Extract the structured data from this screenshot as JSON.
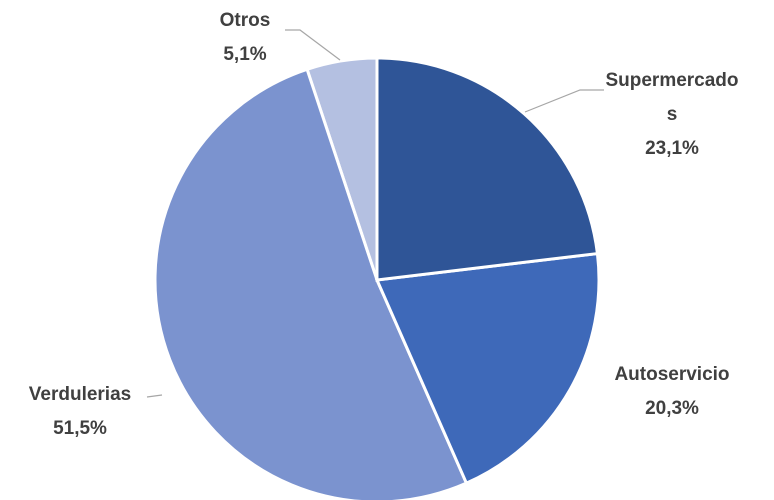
{
  "chart_data": {
    "type": "pie",
    "categories": [
      "Supermercados",
      "Autoservicio",
      "Verdulerias",
      "Otros"
    ],
    "values": [
      23.1,
      20.3,
      51.5,
      5.1
    ],
    "value_labels": [
      "23,1%",
      "20,3%",
      "51,5%",
      "5,1%"
    ],
    "colors": [
      "#2f5597",
      "#3e69b9",
      "#7b93cf",
      "#b4c0e1"
    ]
  }
}
